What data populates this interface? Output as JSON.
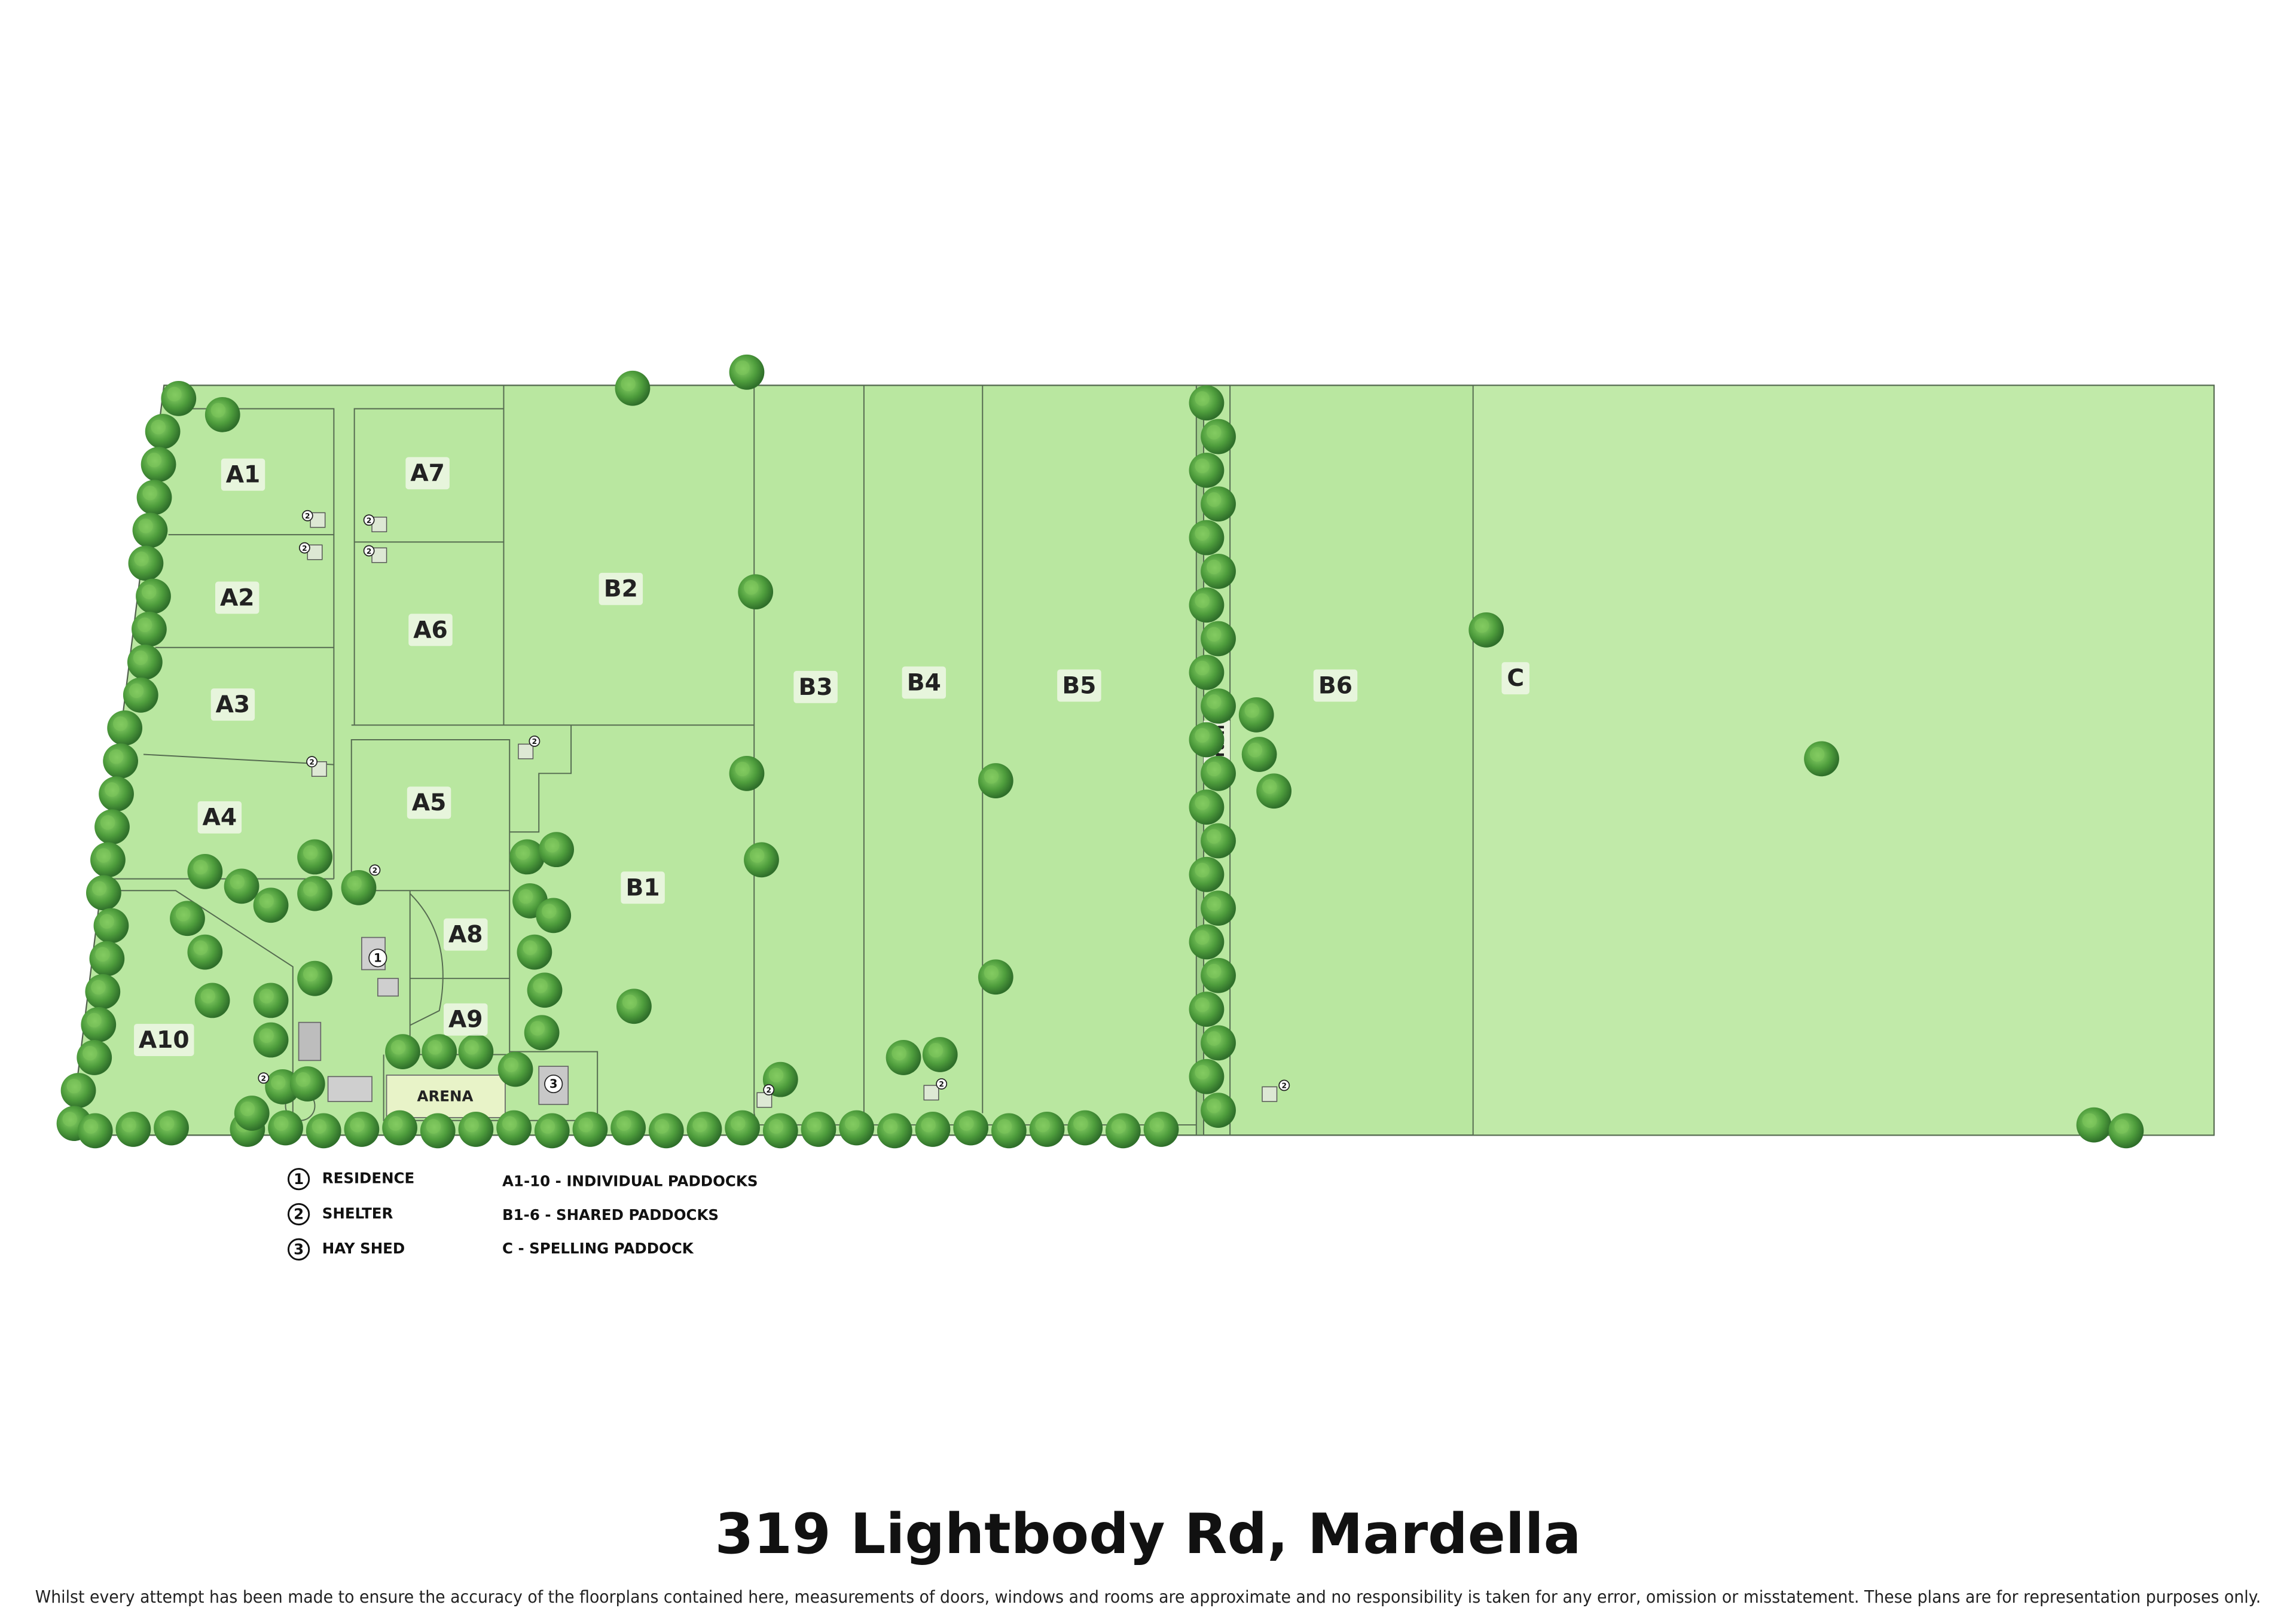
{
  "title": "319 Lightbody Rd, Mardella",
  "disclaimer": "Whilst every attempt has been made to ensure the accuracy of the floorplans contained here, measurements of doors, windows and rooms are approximate and no responsibility is taken for any error, omission or misstatement. These plans are for representation purposes only.",
  "paddocks": [
    "A1",
    "A2",
    "A3",
    "A4",
    "A5",
    "A6",
    "A7",
    "A8",
    "A9",
    "A10",
    "B1",
    "B2",
    "B3",
    "B4",
    "B5",
    "B6",
    "C"
  ],
  "arena": "ARENA",
  "drain": "Drain",
  "markers": [
    "2",
    "2",
    "2",
    "2",
    "2",
    "2",
    "2",
    "2",
    "2",
    "2",
    "2",
    "1",
    "3"
  ],
  "legend": {
    "buildings": [
      {
        "number": "1",
        "label": "RESIDENCE"
      },
      {
        "number": "2",
        "label": "SHELTER"
      },
      {
        "number": "3",
        "label": "HAY SHED"
      }
    ],
    "paddock_types": [
      "A1-10 - INDIVIDUAL PADDOCKS",
      "B1-6 - SHARED PADDOCKS",
      "C - SPELLING PADDOCK"
    ]
  }
}
